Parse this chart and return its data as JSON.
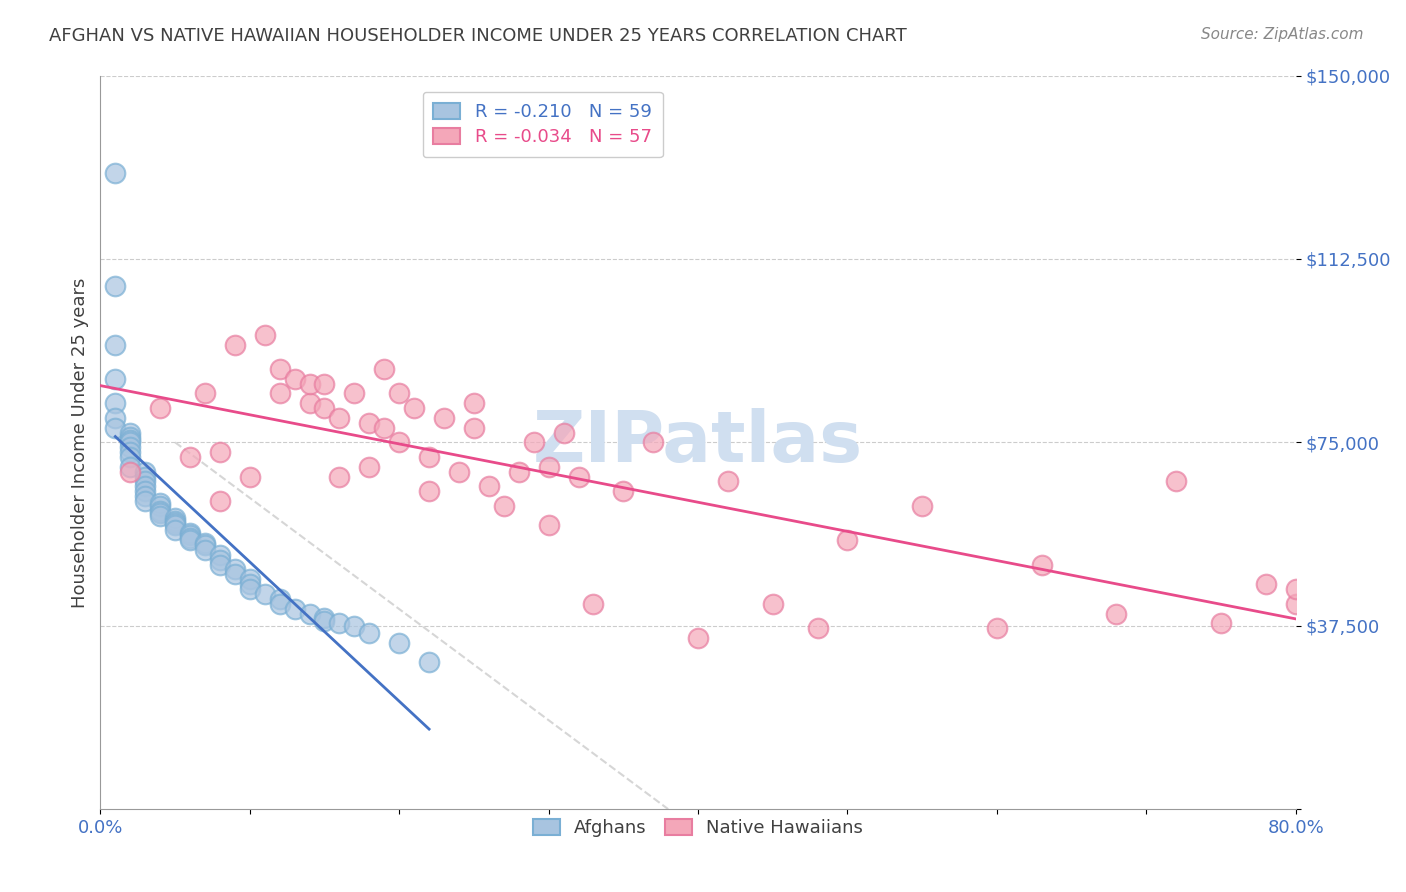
{
  "title": "AFGHAN VS NATIVE HAWAIIAN HOUSEHOLDER INCOME UNDER 25 YEARS CORRELATION CHART",
  "source": "Source: ZipAtlas.com",
  "ylabel": "Householder Income Under 25 years",
  "xlim": [
    0,
    0.8
  ],
  "ylim": [
    0,
    150000
  ],
  "yticks": [
    0,
    37500,
    75000,
    112500,
    150000
  ],
  "ytick_labels": [
    "",
    "$37,500",
    "$75,000",
    "$112,500",
    "$150,000"
  ],
  "xticks": [
    0.0,
    0.1,
    0.2,
    0.3,
    0.4,
    0.5,
    0.6,
    0.7,
    0.8
  ],
  "xtick_labels": [
    "0.0%",
    "",
    "",
    "",
    "",
    "",
    "",
    "",
    "80.0%"
  ],
  "afghan_color": "#a8c4e0",
  "hawaiian_color": "#f4a7b9",
  "afghan_edge": "#7aafd4",
  "hawaiian_edge": "#e87da0",
  "afghan_R": -0.21,
  "afghan_N": 59,
  "hawaiian_R": -0.034,
  "hawaiian_N": 57,
  "trend_afghan_color": "#4472c4",
  "trend_hawaiian_color": "#e84b8a",
  "ref_line_color": "#cccccc",
  "watermark_color": "#d0dff0",
  "title_color": "#404040",
  "axis_label_color": "#404040",
  "tick_label_color": "#4472c4",
  "legend_R_color_afghan": "#4472c4",
  "legend_R_color_hawaiian": "#e84b8a",
  "afghans_x": [
    0.01,
    0.01,
    0.01,
    0.01,
    0.01,
    0.01,
    0.01,
    0.02,
    0.02,
    0.02,
    0.02,
    0.02,
    0.02,
    0.02,
    0.02,
    0.03,
    0.03,
    0.03,
    0.03,
    0.03,
    0.03,
    0.03,
    0.04,
    0.04,
    0.04,
    0.04,
    0.04,
    0.05,
    0.05,
    0.05,
    0.05,
    0.05,
    0.06,
    0.06,
    0.06,
    0.06,
    0.07,
    0.07,
    0.07,
    0.08,
    0.08,
    0.08,
    0.09,
    0.09,
    0.1,
    0.1,
    0.1,
    0.11,
    0.12,
    0.12,
    0.13,
    0.14,
    0.15,
    0.15,
    0.16,
    0.17,
    0.18,
    0.2,
    0.22
  ],
  "afghans_y": [
    130000,
    107000,
    95000,
    88000,
    83000,
    80000,
    78000,
    77000,
    76000,
    75500,
    75000,
    74000,
    73000,
    72000,
    70000,
    69000,
    68000,
    67000,
    66000,
    65000,
    64000,
    63000,
    62500,
    62000,
    61000,
    60500,
    60000,
    59500,
    59000,
    58500,
    58000,
    57000,
    56500,
    56000,
    55500,
    55000,
    54500,
    54000,
    53000,
    52000,
    51000,
    50000,
    49000,
    48000,
    47000,
    46000,
    45000,
    44000,
    43000,
    42000,
    41000,
    40000,
    39000,
    38500,
    38000,
    37500,
    36000,
    34000,
    30000
  ],
  "hawaiians_x": [
    0.02,
    0.04,
    0.06,
    0.07,
    0.08,
    0.08,
    0.09,
    0.1,
    0.11,
    0.12,
    0.12,
    0.13,
    0.14,
    0.14,
    0.15,
    0.15,
    0.16,
    0.16,
    0.17,
    0.18,
    0.18,
    0.19,
    0.19,
    0.2,
    0.2,
    0.21,
    0.22,
    0.22,
    0.23,
    0.24,
    0.25,
    0.25,
    0.26,
    0.27,
    0.28,
    0.29,
    0.3,
    0.3,
    0.31,
    0.32,
    0.33,
    0.35,
    0.37,
    0.4,
    0.42,
    0.45,
    0.48,
    0.5,
    0.55,
    0.6,
    0.63,
    0.68,
    0.72,
    0.75,
    0.78,
    0.8,
    0.8
  ],
  "hawaiians_y": [
    69000,
    82000,
    72000,
    85000,
    63000,
    73000,
    95000,
    68000,
    97000,
    90000,
    85000,
    88000,
    83000,
    87000,
    87000,
    82000,
    80000,
    68000,
    85000,
    79000,
    70000,
    90000,
    78000,
    85000,
    75000,
    82000,
    72000,
    65000,
    80000,
    69000,
    83000,
    78000,
    66000,
    62000,
    69000,
    75000,
    70000,
    58000,
    77000,
    68000,
    42000,
    65000,
    75000,
    35000,
    67000,
    42000,
    37000,
    55000,
    62000,
    37000,
    50000,
    40000,
    67000,
    38000,
    46000,
    42000,
    45000
  ]
}
